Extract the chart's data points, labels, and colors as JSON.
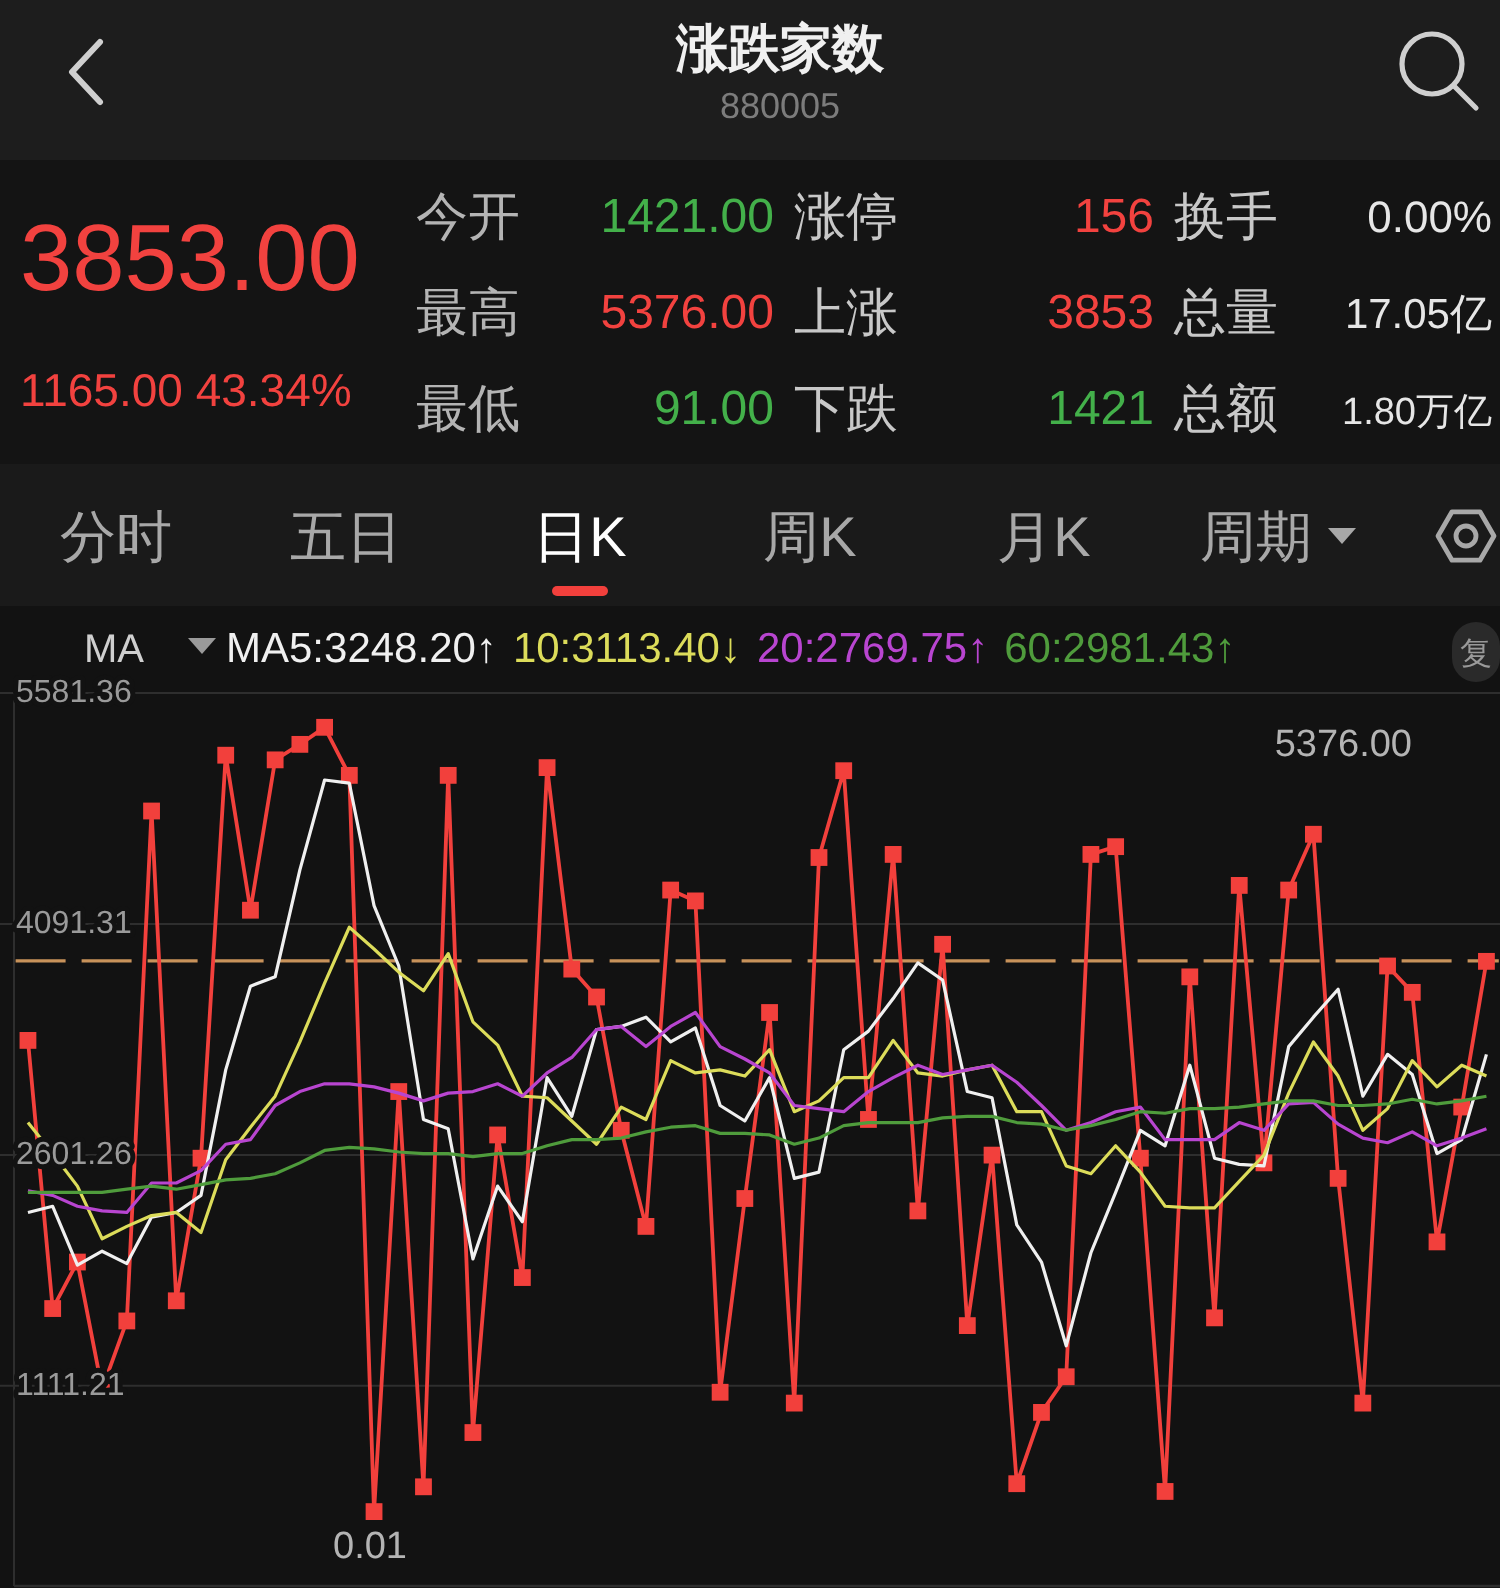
{
  "chart_data": {
    "type": "line",
    "title": "涨跌家数",
    "subtitle": "880005",
    "categories": [
      null,
      null,
      null,
      null,
      null,
      null,
      null,
      null,
      null,
      null,
      null,
      null,
      null,
      null,
      null,
      null,
      null,
      null,
      null,
      null,
      null,
      null,
      null,
      null,
      null,
      null,
      null,
      null,
      null,
      null,
      null,
      null,
      null,
      null,
      null,
      null,
      null,
      null,
      null,
      null,
      null,
      null,
      null,
      null,
      null,
      null,
      null,
      null,
      null,
      null,
      null,
      null,
      null,
      null,
      null,
      null,
      null,
      null,
      null,
      null
    ],
    "series": [
      {
        "color": "#f2403c",
        "marker": "square",
        "values": [
          3340,
          1610,
          1910,
          1090,
          1530,
          4820,
          1660,
          2580,
          5180,
          4180,
          5150,
          5250,
          5360,
          5050,
          300,
          3010,
          460,
          5050,
          810,
          2730,
          1810,
          5100,
          3800,
          3620,
          2760,
          2140,
          4310,
          4240,
          1070,
          2320,
          3520,
          1000,
          4520,
          5080,
          2830,
          4540,
          2240,
          3960,
          1500,
          2600,
          480,
          940,
          1170,
          4540,
          4590,
          2580,
          430,
          3750,
          1550,
          4340,
          2550,
          4310,
          4670,
          2450,
          1000,
          3820,
          3650,
          2040,
          2910,
          3850
        ]
      },
      {
        "name": "MA5:3248.20↑",
        "color": "#f0f0f0",
        "values": [
          2230,
          2270,
          1890,
          1980,
          1900,
          2200,
          2230,
          2340,
          3150,
          3690,
          3750,
          4440,
          5020,
          5000,
          4210,
          3820,
          2830,
          2770,
          1930,
          2400,
          2170,
          3100,
          2850,
          3410,
          3430,
          3490,
          3330,
          3420,
          2920,
          2820,
          3100,
          2450,
          2490,
          3280,
          3400,
          3610,
          3840,
          3730,
          3010,
          2970,
          2150,
          1910,
          1370,
          1970,
          2360,
          2760,
          2660,
          3180,
          2580,
          2540,
          2530,
          3300,
          3490,
          3670,
          2980,
          3250,
          3120,
          2610,
          2700,
          3250
        ]
      },
      {
        "name": "10:3113.40↓",
        "color": "#dcdc5a",
        "values": [
          2810,
          2610,
          2400,
          2060,
          2140,
          2210,
          2230,
          2100,
          2570,
          2780,
          2980,
          3330,
          3710,
          4070,
          3930,
          3780,
          3660,
          3900,
          3460,
          3310,
          2980,
          2970,
          2820,
          2670,
          2910,
          2830,
          3210,
          3130,
          3150,
          3110,
          3280,
          2880,
          2950,
          3100,
          3100,
          3340,
          3130,
          3110,
          3150,
          3180,
          2880,
          2880,
          2530,
          2480,
          2660,
          2490,
          2270,
          2260,
          2260,
          2430,
          2600,
          3000,
          3330,
          3110,
          2760,
          2900,
          3210,
          3040,
          3180,
          3110
        ]
      },
      {
        "name": "20:2769.75↑",
        "color": "#b845d0",
        "values": [
          2370,
          2340,
          2270,
          2240,
          2230,
          2420,
          2420,
          2500,
          2670,
          2700,
          2920,
          3010,
          3060,
          3060,
          3040,
          3000,
          2950,
          3000,
          3010,
          3060,
          2980,
          3130,
          3230,
          3410,
          3430,
          3300,
          3430,
          3520,
          3300,
          3220,
          3130,
          2920,
          2900,
          2880,
          3010,
          3100,
          3180,
          3120,
          3150,
          3180,
          3070,
          2920,
          2760,
          2810,
          2880,
          2910,
          2700,
          2700,
          2700,
          2810,
          2760,
          2930,
          2940,
          2800,
          2710,
          2680,
          2750,
          2660,
          2710,
          2770
        ]
      },
      {
        "name": "60:2981.43↑",
        "color": "#4f9c3c",
        "values": [
          2360,
          2360,
          2360,
          2360,
          2380,
          2400,
          2380,
          2410,
          2440,
          2450,
          2480,
          2550,
          2630,
          2650,
          2640,
          2620,
          2610,
          2610,
          2590,
          2610,
          2610,
          2660,
          2700,
          2700,
          2710,
          2750,
          2780,
          2790,
          2740,
          2740,
          2730,
          2670,
          2710,
          2790,
          2810,
          2810,
          2810,
          2840,
          2850,
          2850,
          2810,
          2800,
          2760,
          2790,
          2830,
          2880,
          2870,
          2900,
          2900,
          2910,
          2930,
          2950,
          2950,
          2920,
          2920,
          2930,
          2960,
          2930,
          2950,
          2980
        ]
      }
    ],
    "ylim": [
      -180,
      5581.36
    ],
    "yticks": [
      5581.36,
      4091.31,
      2601.26,
      1111.21
    ],
    "grid": "y",
    "tick_labels": "y",
    "legend": "top",
    "legend_title": "MA",
    "ref_lines": [
      {
        "axis": "y",
        "value": 3853,
        "color": "#c8925a",
        "line_style": "dashed"
      }
    ],
    "annotations": [
      "3853.00",
      "1165.00 43.34%",
      "今开",
      "1421.00",
      "涨停",
      "156",
      "换手",
      "0.00%",
      "最高",
      "5376.00",
      "上涨",
      "3853",
      "总量",
      "17.05亿",
      "最低",
      "91.00",
      "下跌",
      "1421",
      "总额",
      "1.80万亿",
      "分时",
      "五日",
      "日K",
      "周K",
      "月K",
      "周期",
      "复",
      "5376.00",
      "0.01"
    ]
  }
}
